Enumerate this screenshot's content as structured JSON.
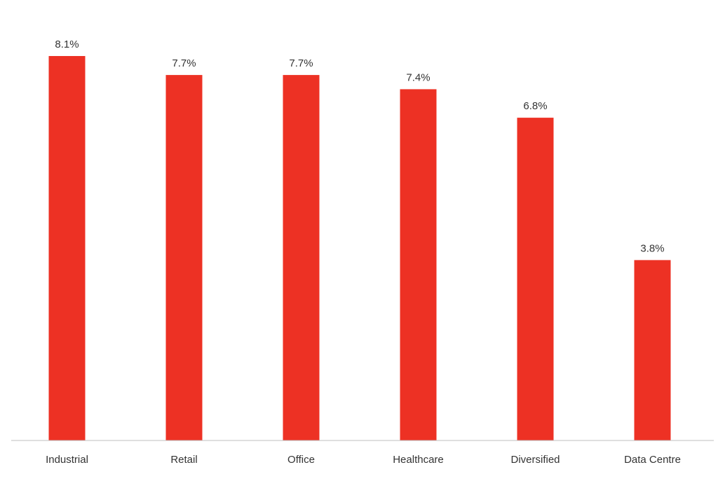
{
  "chart_data": {
    "type": "bar",
    "title": "",
    "xlabel": "",
    "ylabel": "",
    "categories": [
      "Industrial",
      "Retail",
      "Office",
      "Healthcare",
      "Diversified",
      "Data Centre"
    ],
    "values": [
      8.1,
      7.7,
      7.7,
      7.4,
      6.8,
      3.8
    ],
    "value_labels": [
      "8.1%",
      "7.7%",
      "7.7%",
      "7.4%",
      "6.8%",
      "3.8%"
    ],
    "ylim": [
      0,
      8.1
    ],
    "grid": false,
    "legend": "none",
    "bar_color": "#ED3124",
    "axis_color": "#BFBFBF",
    "text_color": "#333333"
  }
}
